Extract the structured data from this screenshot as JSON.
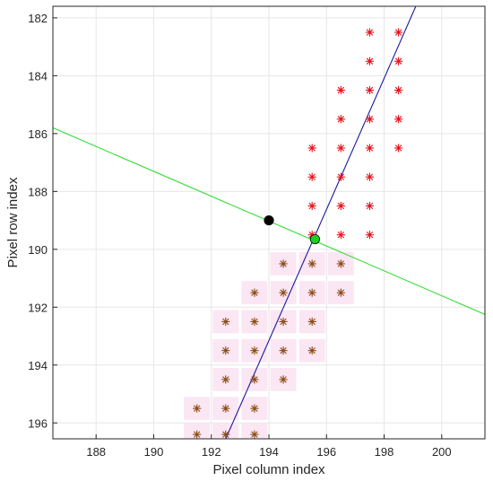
{
  "chart_data": {
    "type": "scatter",
    "title": "",
    "xlabel": "Pixel column index",
    "ylabel": "Pixel row index",
    "xlim": [
      186.5,
      201.5
    ],
    "ylim": [
      181.6,
      196.55
    ],
    "y_reversed": true,
    "grid": true,
    "x_ticks": [
      188,
      190,
      192,
      194,
      196,
      198,
      200
    ],
    "y_ticks": [
      182,
      184,
      186,
      188,
      190,
      192,
      194,
      196
    ],
    "series": [
      {
        "marker": "asterisk",
        "color": "#e8101a",
        "points": [
          [
            197.5,
            182.5
          ],
          [
            198.5,
            182.5
          ],
          [
            197.5,
            183.5
          ],
          [
            198.5,
            183.5
          ],
          [
            196.5,
            184.5
          ],
          [
            197.5,
            184.5
          ],
          [
            198.5,
            184.5
          ],
          [
            196.5,
            185.5
          ],
          [
            197.5,
            185.5
          ],
          [
            198.5,
            185.5
          ],
          [
            195.5,
            186.5
          ],
          [
            196.5,
            186.5
          ],
          [
            197.5,
            186.5
          ],
          [
            198.5,
            186.5
          ],
          [
            195.5,
            187.5
          ],
          [
            196.5,
            187.5
          ],
          [
            197.5,
            187.5
          ],
          [
            195.5,
            188.5
          ],
          [
            196.5,
            188.5
          ],
          [
            197.5,
            188.5
          ],
          [
            195.5,
            189.5
          ],
          [
            196.5,
            189.5
          ],
          [
            197.5,
            189.5
          ]
        ]
      },
      {
        "marker": "asterisk",
        "color": "#8a4a12",
        "points": [
          [
            194.5,
            190.5
          ],
          [
            195.5,
            190.5
          ],
          [
            196.5,
            190.5
          ],
          [
            193.5,
            191.5
          ],
          [
            194.5,
            191.5
          ],
          [
            195.5,
            191.5
          ],
          [
            196.5,
            191.5
          ],
          [
            192.5,
            192.5
          ],
          [
            193.5,
            192.5
          ],
          [
            194.5,
            192.5
          ],
          [
            195.5,
            192.5
          ],
          [
            192.5,
            193.5
          ],
          [
            193.5,
            193.5
          ],
          [
            194.5,
            193.5
          ],
          [
            195.5,
            193.5
          ],
          [
            192.5,
            194.5
          ],
          [
            193.5,
            194.5
          ],
          [
            194.5,
            194.5
          ],
          [
            191.5,
            195.5
          ],
          [
            192.5,
            195.5
          ],
          [
            193.5,
            195.5
          ],
          [
            191.5,
            196.4
          ],
          [
            192.5,
            196.4
          ],
          [
            193.5,
            196.4
          ]
        ]
      }
    ],
    "lines": [
      {
        "color": "#1a1aa0",
        "from": [
          192.5,
          196.55
        ],
        "to": [
          199.1,
          181.6
        ]
      },
      {
        "color": "#33dd33",
        "from": [
          186.5,
          185.8
        ],
        "to": [
          201.5,
          192.25
        ]
      }
    ],
    "markers": [
      {
        "x": 194.0,
        "y": 189.0,
        "color": "#000000"
      },
      {
        "x": 195.6,
        "y": 189.65,
        "color": "#22cc22"
      }
    ]
  }
}
